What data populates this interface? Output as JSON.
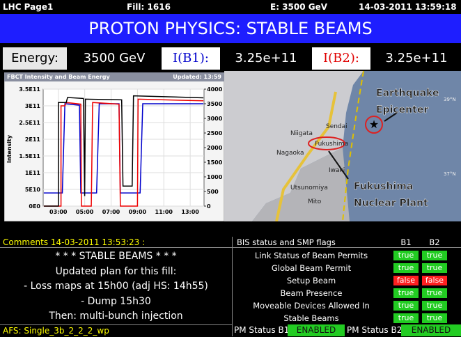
{
  "header": {
    "page": "LHC Page1",
    "fill": "Fill: 1616",
    "energy": "E:  3500 GeV",
    "timestamp": "14-03-2011 13:59:18"
  },
  "banner": "PROTON PHYSICS: STABLE BEAMS",
  "beam_row": {
    "energy_label": "Energy:",
    "energy": "3500 GeV",
    "b1_label": "I(B1):",
    "b1": "3.25e+11",
    "b2_label": "I(B2):",
    "b2": "3.25e+11"
  },
  "chart_data": {
    "type": "line",
    "title": "FBCT Intensity and Beam Energy",
    "subtitle": "Updated: 13:59",
    "y_label": "Intensity",
    "xlim": [
      1.85,
      14.05
    ],
    "xticks": [
      {
        "value": 3,
        "label": "03:00"
      },
      {
        "value": 5,
        "label": "05:00"
      },
      {
        "value": 7,
        "label": "07:00"
      },
      {
        "value": 9,
        "label": "09:00"
      },
      {
        "value": 11,
        "label": "11:00"
      },
      {
        "value": 13,
        "label": "13:00"
      }
    ],
    "ylim": [
      0,
      350000000000
    ],
    "yticks": [
      {
        "value": 0,
        "label": "0E0"
      },
      {
        "value": 50000000000,
        "label": "5E10"
      },
      {
        "value": 100000000000,
        "label": "1E11"
      },
      {
        "value": 150000000000,
        "label": "1.5E11"
      },
      {
        "value": 200000000000,
        "label": "2E11"
      },
      {
        "value": 250000000000,
        "label": "2.5E11"
      },
      {
        "value": 300000000000,
        "label": "3E11"
      },
      {
        "value": 350000000000,
        "label": "3.5E11"
      }
    ],
    "y2lim": [
      0,
      4000
    ],
    "y2ticks": [
      0,
      500,
      1000,
      1500,
      2000,
      2500,
      3000,
      3500,
      4000
    ],
    "grid": true,
    "series": [
      {
        "color": "#0000cc",
        "axis": "y2",
        "x": [
          1.9,
          3.3,
          3.5,
          4.6,
          4.7,
          5.9,
          6.1,
          7.6,
          7.7,
          9.2,
          9.4,
          14.0
        ],
        "values": [
          450,
          450,
          3500,
          3450,
          450,
          450,
          3500,
          3500,
          450,
          450,
          3500,
          3500
        ]
      },
      {
        "color": "#ee0000",
        "axis": "y",
        "x": [
          1.9,
          3.2,
          3.2,
          3.5,
          3.6,
          4.7,
          4.75,
          5.5,
          5.6,
          7.6,
          7.7,
          9.0,
          9.05,
          14.0
        ],
        "values": [
          0,
          0,
          300000000000,
          300000000000,
          310000000000,
          305000000000,
          0,
          0,
          310000000000,
          305000000000,
          0,
          0,
          320000000000,
          315000000000
        ]
      },
      {
        "color": "#000000",
        "axis": "y",
        "x": [
          1.9,
          3.0,
          3.0,
          3.6,
          3.7,
          4.9,
          5.0,
          5.05,
          7.8,
          7.9,
          8.6,
          8.7,
          14.0
        ],
        "values": [
          0,
          0,
          310000000000,
          310000000000,
          325000000000,
          322000000000,
          30000000000,
          320000000000,
          318000000000,
          60000000000,
          60000000000,
          330000000000,
          324000000000
        ]
      }
    ]
  },
  "map": {
    "epicenter_1": "Earthquake",
    "epicenter_2": "Epicenter",
    "plant_1": "Fukushima",
    "plant_2": "Nuclear Plant",
    "lat_39": "39°N",
    "lat_37": "37°N",
    "cities": [
      "Niigata",
      "Sendai",
      "Fukushima",
      "Nagaoka",
      "Iwaki",
      "Utsunomiya",
      "Mito"
    ]
  },
  "comments": {
    "title": "Comments 14-03-2011 13:53:23 :",
    "lines": [
      "* * * STABLE BEAMS * * *",
      "Updated plan for this fill:",
      "- Loss maps at 15h00 (adj HS: 14h55)",
      "- Dump 15h30",
      "Then: multi-bunch injection"
    ]
  },
  "bis": {
    "title": "BIS status and SMP flags",
    "col_b1": "B1",
    "col_b2": "B2",
    "rows": [
      {
        "label": "Link Status of Beam Permits",
        "b1": "true",
        "b2": "true"
      },
      {
        "label": "Global Beam Permit",
        "b1": "true",
        "b2": "true"
      },
      {
        "label": "Setup Beam",
        "b1": "false",
        "b2": "false"
      },
      {
        "label": "Beam Presence",
        "b1": "true",
        "b2": "true"
      },
      {
        "label": "Moveable Devices Allowed In",
        "b1": "true",
        "b2": "true"
      },
      {
        "label": "Stable Beams",
        "b1": "true",
        "b2": "true"
      }
    ]
  },
  "footer": {
    "afs": "AFS: Single_3b_2_2_2_wp",
    "pm_b1_label": "PM Status B1",
    "pm_b1": "ENABLED",
    "pm_b2_label": "PM Status B2",
    "pm_b2": "ENABLED"
  }
}
